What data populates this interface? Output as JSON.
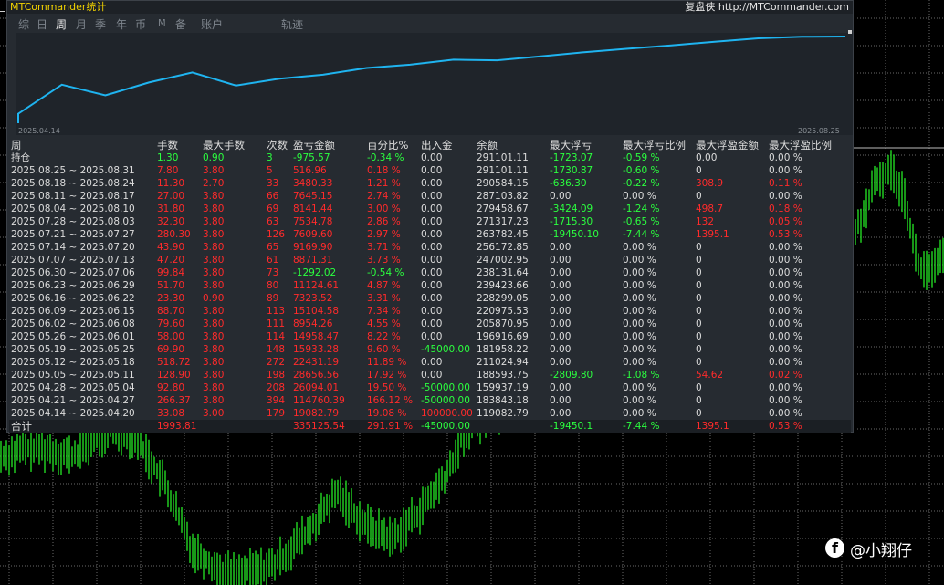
{
  "window": {
    "title": "MTCommander统计",
    "replay_link": "复盘侠 http://MTCommander.com"
  },
  "tabs": [
    "综",
    "日",
    "周",
    "月",
    "季",
    "年",
    "币",
    "M",
    "备",
    "账户"
  ],
  "active_tab": "周",
  "track_tab": "轨迹",
  "curve": {
    "start_date": "2025.04.14",
    "end_date": "2025.08.25",
    "line_color": "#1fb4f0",
    "balances": [
      119082.79,
      183843.18,
      159937.19,
      188593.75,
      211024.94,
      181958.22,
      196916.69,
      205870.95,
      220975.53,
      228299.05,
      239423.66,
      238131.64,
      247002.95,
      256172.85,
      263782.45,
      271317.23,
      279458.67,
      287103.82,
      290584.15,
      291101.11
    ]
  },
  "table": {
    "headers": [
      "周",
      "手数",
      "最大手数",
      "次数",
      "盈亏金额",
      "百分比%",
      "出入金",
      "余额",
      "最大浮亏",
      "最大浮亏比例",
      "最大浮盈金额",
      "最大浮盈比例"
    ],
    "holding": {
      "label": "持仓",
      "lots": "1.30",
      "max_lots": "0.90",
      "count": "3",
      "pnl": "-975.57",
      "pct": "-0.34 %",
      "flow": "0.00",
      "balance": "291101.11",
      "max_dd": "-1723.07",
      "max_dd_pct": "-0.59 %",
      "max_profit": "0.00",
      "max_profit_pct": "0.00 %"
    },
    "rows": [
      {
        "period": "2025.08.25 ~ 2025.08.31",
        "lots": "7.80",
        "max_lots": "3.80",
        "count": "5",
        "pnl": "516.96",
        "pct": "0.18 %",
        "flow": "0.00",
        "balance": "291101.11",
        "max_dd": "-1730.87",
        "max_dd_pct": "-0.60 %",
        "max_profit": "0",
        "max_profit_pct": "0.00 %"
      },
      {
        "period": "2025.08.18 ~ 2025.08.24",
        "lots": "11.30",
        "max_lots": "2.70",
        "count": "33",
        "pnl": "3480.33",
        "pct": "1.21 %",
        "flow": "0.00",
        "balance": "290584.15",
        "max_dd": "-636.30",
        "max_dd_pct": "-0.22 %",
        "max_profit": "308.9",
        "max_profit_pct": "0.11 %"
      },
      {
        "period": "2025.08.11 ~ 2025.08.17",
        "lots": "27.00",
        "max_lots": "3.80",
        "count": "66",
        "pnl": "7645.15",
        "pct": "2.74 %",
        "flow": "0.00",
        "balance": "287103.82",
        "max_dd": "0.00",
        "max_dd_pct": "0.00 %",
        "max_profit": "0",
        "max_profit_pct": "0.00 %"
      },
      {
        "period": "2025.08.04 ~ 2025.08.10",
        "lots": "31.80",
        "max_lots": "3.80",
        "count": "69",
        "pnl": "8141.44",
        "pct": "3.00 %",
        "flow": "0.00",
        "balance": "279458.67",
        "max_dd": "-3424.09",
        "max_dd_pct": "-1.24 %",
        "max_profit": "498.7",
        "max_profit_pct": "0.18 %"
      },
      {
        "period": "2025.07.28 ~ 2025.08.03",
        "lots": "32.30",
        "max_lots": "3.80",
        "count": "63",
        "pnl": "7534.78",
        "pct": "2.86 %",
        "flow": "0.00",
        "balance": "271317.23",
        "max_dd": "-1715.30",
        "max_dd_pct": "-0.65 %",
        "max_profit": "132",
        "max_profit_pct": "0.05 %"
      },
      {
        "period": "2025.07.21 ~ 2025.07.27",
        "lots": "280.30",
        "max_lots": "3.80",
        "count": "126",
        "pnl": "7609.60",
        "pct": "2.97 %",
        "flow": "0.00",
        "balance": "263782.45",
        "max_dd": "-19450.10",
        "max_dd_pct": "-7.44 %",
        "max_profit": "1395.1",
        "max_profit_pct": "0.53 %"
      },
      {
        "period": "2025.07.14 ~ 2025.07.20",
        "lots": "43.90",
        "max_lots": "3.80",
        "count": "65",
        "pnl": "9169.90",
        "pct": "3.71 %",
        "flow": "0.00",
        "balance": "256172.85",
        "max_dd": "0.00",
        "max_dd_pct": "0.00 %",
        "max_profit": "0",
        "max_profit_pct": "0.00 %"
      },
      {
        "period": "2025.07.07 ~ 2025.07.13",
        "lots": "47.20",
        "max_lots": "3.80",
        "count": "61",
        "pnl": "8871.31",
        "pct": "3.73 %",
        "flow": "0.00",
        "balance": "247002.95",
        "max_dd": "0.00",
        "max_dd_pct": "0.00 %",
        "max_profit": "0",
        "max_profit_pct": "0.00 %"
      },
      {
        "period": "2025.06.30 ~ 2025.07.06",
        "lots": "99.84",
        "max_lots": "3.80",
        "count": "73",
        "pnl": "-1292.02",
        "pct": "-0.54 %",
        "flow": "0.00",
        "balance": "238131.64",
        "max_dd": "0.00",
        "max_dd_pct": "0.00 %",
        "max_profit": "0",
        "max_profit_pct": "0.00 %"
      },
      {
        "period": "2025.06.23 ~ 2025.06.29",
        "lots": "51.70",
        "max_lots": "3.80",
        "count": "80",
        "pnl": "11124.61",
        "pct": "4.87 %",
        "flow": "0.00",
        "balance": "239423.66",
        "max_dd": "0.00",
        "max_dd_pct": "0.00 %",
        "max_profit": "0",
        "max_profit_pct": "0.00 %"
      },
      {
        "period": "2025.06.16 ~ 2025.06.22",
        "lots": "23.30",
        "max_lots": "0.90",
        "count": "89",
        "pnl": "7323.52",
        "pct": "3.31 %",
        "flow": "0.00",
        "balance": "228299.05",
        "max_dd": "0.00",
        "max_dd_pct": "0.00 %",
        "max_profit": "0",
        "max_profit_pct": "0.00 %"
      },
      {
        "period": "2025.06.09 ~ 2025.06.15",
        "lots": "88.70",
        "max_lots": "3.80",
        "count": "113",
        "pnl": "15104.58",
        "pct": "7.34 %",
        "flow": "0.00",
        "balance": "220975.53",
        "max_dd": "0.00",
        "max_dd_pct": "0.00 %",
        "max_profit": "0",
        "max_profit_pct": "0.00 %"
      },
      {
        "period": "2025.06.02 ~ 2025.06.08",
        "lots": "79.60",
        "max_lots": "3.80",
        "count": "111",
        "pnl": "8954.26",
        "pct": "4.55 %",
        "flow": "0.00",
        "balance": "205870.95",
        "max_dd": "0.00",
        "max_dd_pct": "0.00 %",
        "max_profit": "0",
        "max_profit_pct": "0.00 %"
      },
      {
        "period": "2025.05.26 ~ 2025.06.01",
        "lots": "58.00",
        "max_lots": "3.80",
        "count": "114",
        "pnl": "14958.47",
        "pct": "8.22 %",
        "flow": "0.00",
        "balance": "196916.69",
        "max_dd": "0.00",
        "max_dd_pct": "0.00 %",
        "max_profit": "0",
        "max_profit_pct": "0.00 %"
      },
      {
        "period": "2025.05.19 ~ 2025.05.25",
        "lots": "69.90",
        "max_lots": "3.80",
        "count": "148",
        "pnl": "15933.28",
        "pct": "9.60 %",
        "flow": "-45000.00",
        "balance": "181958.22",
        "max_dd": "0.00",
        "max_dd_pct": "0.00 %",
        "max_profit": "0",
        "max_profit_pct": "0.00 %"
      },
      {
        "period": "2025.05.12 ~ 2025.05.18",
        "lots": "518.72",
        "max_lots": "3.80",
        "count": "272",
        "pnl": "22431.19",
        "pct": "11.89 %",
        "flow": "0.00",
        "balance": "211024.94",
        "max_dd": "0.00",
        "max_dd_pct": "0.00 %",
        "max_profit": "0",
        "max_profit_pct": "0.00 %"
      },
      {
        "period": "2025.05.05 ~ 2025.05.11",
        "lots": "128.90",
        "max_lots": "3.80",
        "count": "198",
        "pnl": "28656.56",
        "pct": "17.92 %",
        "flow": "0.00",
        "balance": "188593.75",
        "max_dd": "-2809.80",
        "max_dd_pct": "-1.08 %",
        "max_profit": "54.62",
        "max_profit_pct": "0.02 %"
      },
      {
        "period": "2025.04.28 ~ 2025.05.04",
        "lots": "92.80",
        "max_lots": "3.80",
        "count": "208",
        "pnl": "26094.01",
        "pct": "19.50 %",
        "flow": "-50000.00",
        "balance": "159937.19",
        "max_dd": "0.00",
        "max_dd_pct": "0.00 %",
        "max_profit": "0",
        "max_profit_pct": "0.00 %"
      },
      {
        "period": "2025.04.21 ~ 2025.04.27",
        "lots": "266.37",
        "max_lots": "3.80",
        "count": "394",
        "pnl": "114760.39",
        "pct": "166.12 %",
        "flow": "-50000.00",
        "balance": "183843.18",
        "max_dd": "0.00",
        "max_dd_pct": "0.00 %",
        "max_profit": "0",
        "max_profit_pct": "0.00 %"
      },
      {
        "period": "2025.04.14 ~ 2025.04.20",
        "lots": "33.08",
        "max_lots": "3.00",
        "count": "179",
        "pnl": "19082.79",
        "pct": "19.08 %",
        "flow": "100000.00",
        "balance": "119082.79",
        "max_dd": "0.00",
        "max_dd_pct": "0.00 %",
        "max_profit": "0",
        "max_profit_pct": "0.00 %"
      }
    ],
    "total": {
      "label": "合计",
      "lots": "1993.81",
      "max_lots": "",
      "count": "",
      "pnl": "335125.54",
      "pct": "291.91 %",
      "flow": "-45000.00",
      "balance": "",
      "max_dd": "-19450.1",
      "max_dd_pct": "-7.44 %",
      "max_profit": "1395.1",
      "max_profit_pct": "0.53 %"
    }
  },
  "colors": {
    "positive": "#ff2b2b",
    "negative": "#2bff3f",
    "neutral": "#dcdcdc",
    "candles": "#22d822"
  },
  "watermark": {
    "icon": "facebook-icon",
    "text": "@小翔仔"
  }
}
